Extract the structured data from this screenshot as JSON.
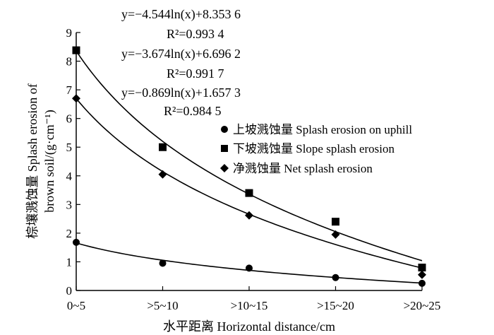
{
  "chart_data": {
    "type": "scatter",
    "title": "",
    "xlabel": "水平距离 Horizontal distance/cm",
    "ylabel_line1": "棕壤溅蚀量 Splash erosion of",
    "ylabel_line2": "brown soil/(g·cm⁻¹)",
    "categories": [
      "0~5",
      ">5~10",
      ">10~15",
      ">15~20",
      ">20~25"
    ],
    "x": [
      1,
      2,
      3,
      4,
      5
    ],
    "ylim": [
      0,
      9
    ],
    "yticks": [
      "0",
      "1",
      "2",
      "3",
      "4",
      "5",
      "6",
      "7",
      "8",
      "9"
    ],
    "grid": false,
    "series": [
      {
        "name": "上坡溅蚀量 Splash erosion on uphill",
        "marker": "circle",
        "values": [
          1.68,
          0.95,
          0.78,
          0.45,
          0.25
        ],
        "fit": {
          "a": -0.869,
          "b": 1.6573
        },
        "equation": "y=−0.869ln(x)+1.657 3",
        "r2": "R²=0.984 5"
      },
      {
        "name": "下坡溅蚀量 Slope splash erosion",
        "marker": "square",
        "values": [
          8.38,
          5.0,
          3.4,
          2.4,
          0.8
        ],
        "fit": {
          "a": -4.544,
          "b": 8.3536
        },
        "equation": "y=−4.544ln(x)+8.353 6",
        "r2": "R²=0.993 4"
      },
      {
        "name": "净溅蚀量 Net splash erosion",
        "marker": "diamond",
        "values": [
          6.7,
          4.05,
          2.62,
          1.95,
          0.55
        ],
        "fit": {
          "a": -3.674,
          "b": 6.6962
        },
        "equation": "y=−3.674ln(x)+6.696 2",
        "r2": "R²=0.991 7"
      }
    ]
  }
}
